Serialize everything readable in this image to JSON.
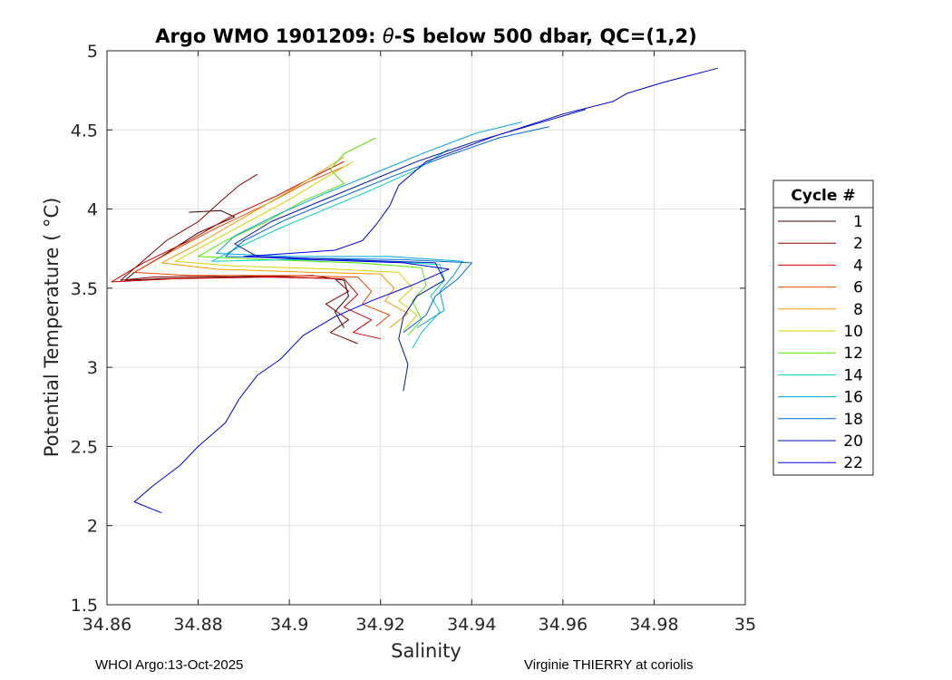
{
  "chart_data": {
    "type": "line",
    "title_parts": [
      "Argo WMO 1901209: ",
      "θ",
      "-S below 500 dbar,  QC=(1,2)"
    ],
    "xlabel": "Salinity",
    "ylabel": "Potential Temperature ( °C)",
    "xlim": [
      34.86,
      35.0
    ],
    "ylim": [
      1.5,
      5.0
    ],
    "xticks": [
      34.86,
      34.88,
      34.9,
      34.92,
      34.94,
      34.96,
      34.98,
      35.0
    ],
    "xtick_labels": [
      "34.86",
      "34.88",
      "34.9",
      "34.92",
      "34.94",
      "34.96",
      "34.98",
      "35"
    ],
    "yticks": [
      1.5,
      2.0,
      2.5,
      3.0,
      3.5,
      4.0,
      4.5,
      5.0
    ],
    "ytick_labels": [
      "1.5",
      "2",
      "2.5",
      "3",
      "3.5",
      "4",
      "4.5",
      "5"
    ],
    "grid": true,
    "legend_title": "Cycle #",
    "legend_position": "right-outside",
    "series": [
      {
        "name": "1",
        "color": "#3b0000",
        "points": [
          [
            34.878,
            3.98
          ],
          [
            34.885,
            3.99
          ],
          [
            34.888,
            3.95
          ],
          [
            34.88,
            3.85
          ],
          [
            34.872,
            3.7
          ],
          [
            34.866,
            3.6
          ],
          [
            34.864,
            3.55
          ],
          [
            34.872,
            3.56
          ],
          [
            34.885,
            3.57
          ],
          [
            34.905,
            3.58
          ],
          [
            34.912,
            3.55
          ],
          [
            34.913,
            3.45
          ],
          [
            34.91,
            3.35
          ],
          [
            34.912,
            3.25
          ]
        ]
      },
      {
        "name": "2",
        "color": "#8a0000",
        "points": [
          [
            34.893,
            4.22
          ],
          [
            34.889,
            4.15
          ],
          [
            34.885,
            4.05
          ],
          [
            34.88,
            3.92
          ],
          [
            34.873,
            3.8
          ],
          [
            34.867,
            3.65
          ],
          [
            34.863,
            3.55
          ],
          [
            34.87,
            3.57
          ],
          [
            34.89,
            3.58
          ],
          [
            34.91,
            3.56
          ],
          [
            34.913,
            3.48
          ],
          [
            34.908,
            3.4
          ],
          [
            34.913,
            3.3
          ],
          [
            34.909,
            3.22
          ],
          [
            34.915,
            3.15
          ]
        ]
      },
      {
        "name": "4",
        "color": "#d40000",
        "points": [
          [
            34.912,
            4.3
          ],
          [
            34.905,
            4.2
          ],
          [
            34.897,
            4.08
          ],
          [
            34.887,
            3.95
          ],
          [
            34.878,
            3.8
          ],
          [
            34.868,
            3.66
          ],
          [
            34.861,
            3.54
          ],
          [
            34.875,
            3.56
          ],
          [
            34.895,
            3.57
          ],
          [
            34.912,
            3.56
          ],
          [
            34.915,
            3.46
          ],
          [
            34.912,
            3.38
          ],
          [
            34.918,
            3.3
          ],
          [
            34.914,
            3.22
          ],
          [
            34.92,
            3.18
          ]
        ]
      },
      {
        "name": "6",
        "color": "#f04a00",
        "points": [
          [
            34.913,
            4.28
          ],
          [
            34.904,
            4.17
          ],
          [
            34.895,
            4.03
          ],
          [
            34.884,
            3.88
          ],
          [
            34.874,
            3.73
          ],
          [
            34.866,
            3.6
          ],
          [
            34.878,
            3.58
          ],
          [
            34.9,
            3.58
          ],
          [
            34.915,
            3.57
          ],
          [
            34.918,
            3.48
          ],
          [
            34.916,
            3.4
          ],
          [
            34.922,
            3.33
          ],
          [
            34.919,
            3.26
          ]
        ]
      },
      {
        "name": "8",
        "color": "#f59c00",
        "points": [
          [
            34.912,
            4.33
          ],
          [
            34.906,
            4.22
          ],
          [
            34.898,
            4.08
          ],
          [
            34.889,
            3.93
          ],
          [
            34.88,
            3.78
          ],
          [
            34.872,
            3.66
          ],
          [
            34.884,
            3.62
          ],
          [
            34.905,
            3.6
          ],
          [
            34.92,
            3.59
          ],
          [
            34.923,
            3.5
          ],
          [
            34.921,
            3.42
          ],
          [
            34.926,
            3.34
          ],
          [
            34.922,
            3.25
          ]
        ]
      },
      {
        "name": "10",
        "color": "#d6d600",
        "points": [
          [
            34.914,
            4.3
          ],
          [
            34.908,
            4.2
          ],
          [
            34.9,
            4.06
          ],
          [
            34.891,
            3.92
          ],
          [
            34.882,
            3.78
          ],
          [
            34.875,
            3.67
          ],
          [
            34.888,
            3.64
          ],
          [
            34.91,
            3.62
          ],
          [
            34.924,
            3.6
          ],
          [
            34.927,
            3.5
          ],
          [
            34.924,
            3.42
          ],
          [
            34.928,
            3.33
          ],
          [
            34.925,
            3.23
          ]
        ]
      },
      {
        "name": "12",
        "color": "#55e600",
        "points": [
          [
            34.919,
            4.45
          ],
          [
            34.912,
            4.35
          ],
          [
            34.909,
            4.25
          ],
          [
            34.912,
            4.16
          ],
          [
            34.903,
            4.05
          ],
          [
            34.895,
            3.92
          ],
          [
            34.886,
            3.8
          ],
          [
            34.88,
            3.7
          ],
          [
            34.895,
            3.68
          ],
          [
            34.915,
            3.66
          ],
          [
            34.929,
            3.63
          ],
          [
            34.93,
            3.52
          ],
          [
            34.927,
            3.42
          ],
          [
            34.929,
            3.3
          ],
          [
            34.926,
            3.2
          ]
        ]
      },
      {
        "name": "14",
        "color": "#00d4c0",
        "points": [
          [
            34.935,
            4.38
          ],
          [
            34.928,
            4.25
          ],
          [
            34.918,
            4.12
          ],
          [
            34.908,
            4.0
          ],
          [
            34.898,
            3.88
          ],
          [
            34.889,
            3.76
          ],
          [
            34.883,
            3.67
          ],
          [
            34.9,
            3.68
          ],
          [
            34.92,
            3.67
          ],
          [
            34.933,
            3.65
          ],
          [
            34.934,
            3.55
          ],
          [
            34.931,
            3.45
          ],
          [
            34.933,
            3.35
          ],
          [
            34.929,
            3.22
          ],
          [
            34.927,
            3.12
          ]
        ]
      },
      {
        "name": "16",
        "color": "#00a2e0",
        "points": [
          [
            34.951,
            4.55
          ],
          [
            34.941,
            4.48
          ],
          [
            34.93,
            4.36
          ],
          [
            34.919,
            4.23
          ],
          [
            34.908,
            4.1
          ],
          [
            34.897,
            3.96
          ],
          [
            34.888,
            3.83
          ],
          [
            34.884,
            3.72
          ],
          [
            34.9,
            3.7
          ],
          [
            34.922,
            3.7
          ],
          [
            34.938,
            3.67
          ],
          [
            34.936,
            3.58
          ],
          [
            34.933,
            3.48
          ],
          [
            34.934,
            3.36
          ],
          [
            34.928,
            3.25
          ]
        ]
      },
      {
        "name": "18",
        "color": "#0068d8",
        "points": [
          [
            34.957,
            4.52
          ],
          [
            34.946,
            4.45
          ],
          [
            34.934,
            4.33
          ],
          [
            34.922,
            4.2
          ],
          [
            34.91,
            4.06
          ],
          [
            34.899,
            3.93
          ],
          [
            34.89,
            3.8
          ],
          [
            34.886,
            3.7
          ],
          [
            34.903,
            3.69
          ],
          [
            34.925,
            3.68
          ],
          [
            34.94,
            3.66
          ],
          [
            34.937,
            3.56
          ],
          [
            34.932,
            3.45
          ],
          [
            34.93,
            3.33
          ],
          [
            34.925,
            3.22
          ]
        ]
      },
      {
        "name": "20",
        "color": "#0016b0",
        "points": [
          [
            34.965,
            4.63
          ],
          [
            34.952,
            4.52
          ],
          [
            34.94,
            4.42
          ],
          [
            34.928,
            4.3
          ],
          [
            34.917,
            4.17
          ],
          [
            34.906,
            4.04
          ],
          [
            34.896,
            3.92
          ],
          [
            34.888,
            3.78
          ],
          [
            34.893,
            3.7
          ],
          [
            34.912,
            3.68
          ],
          [
            34.932,
            3.66
          ],
          [
            34.934,
            3.55
          ],
          [
            34.928,
            3.45
          ],
          [
            34.925,
            3.32
          ],
          [
            34.924,
            3.18
          ],
          [
            34.926,
            3.02
          ],
          [
            34.925,
            2.85
          ]
        ]
      },
      {
        "name": "22",
        "color": "#0000e6",
        "points": [
          [
            34.994,
            4.89
          ],
          [
            34.982,
            4.8
          ],
          [
            34.974,
            4.73
          ],
          [
            34.971,
            4.68
          ],
          [
            34.96,
            4.6
          ],
          [
            34.945,
            4.46
          ],
          [
            34.93,
            4.3
          ],
          [
            34.924,
            4.15
          ],
          [
            34.922,
            4.02
          ],
          [
            34.919,
            3.9
          ],
          [
            34.916,
            3.8
          ],
          [
            34.91,
            3.74
          ],
          [
            34.9,
            3.72
          ],
          [
            34.89,
            3.7
          ],
          [
            34.905,
            3.68
          ],
          [
            34.925,
            3.66
          ],
          [
            34.935,
            3.62
          ],
          [
            34.927,
            3.52
          ],
          [
            34.918,
            3.42
          ],
          [
            34.91,
            3.32
          ],
          [
            34.903,
            3.2
          ],
          [
            34.898,
            3.05
          ],
          [
            34.893,
            2.95
          ],
          [
            34.889,
            2.8
          ],
          [
            34.886,
            2.65
          ],
          [
            34.88,
            2.5
          ],
          [
            34.876,
            2.38
          ],
          [
            34.87,
            2.25
          ],
          [
            34.866,
            2.15
          ],
          [
            34.872,
            2.08
          ]
        ]
      }
    ]
  },
  "footer": {
    "left": "WHOI Argo:13-Oct-2025",
    "right": "Virginie THIERRY at coriolis"
  }
}
